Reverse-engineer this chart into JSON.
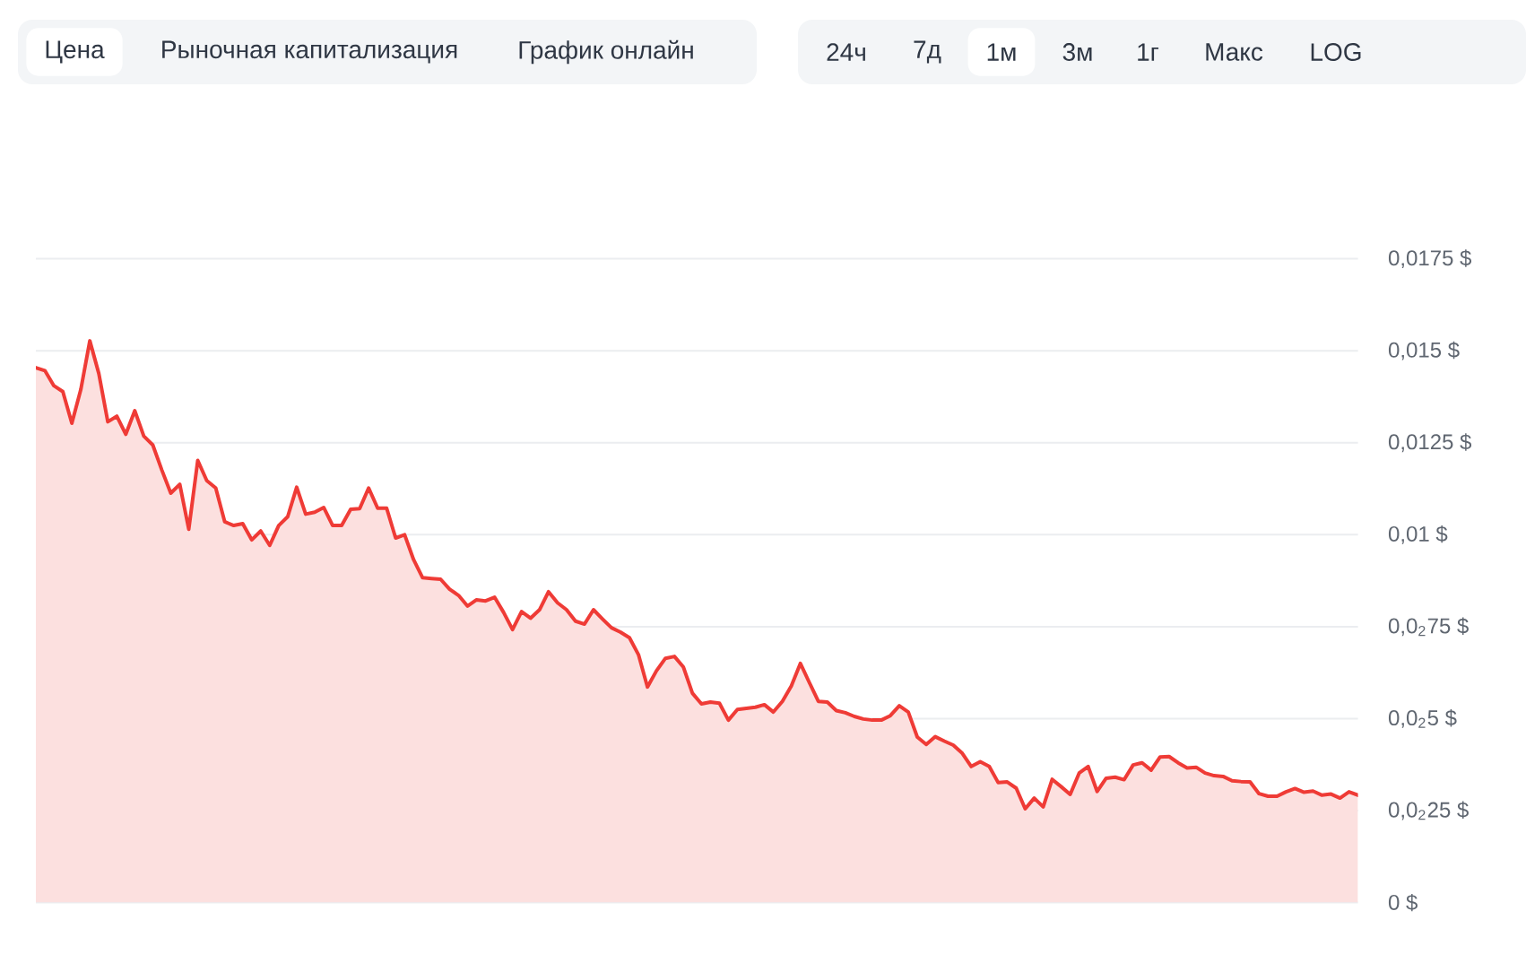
{
  "chart_data": {
    "type": "area",
    "annotations": [
      "Цена",
      "Рыночная капитализация",
      "График онлайн",
      "24ч",
      "7д",
      "1м",
      "3м",
      "1г",
      "Макс",
      "LOG"
    ],
    "categories": [
      null,
      null,
      null,
      null,
      null,
      null,
      null,
      null,
      null,
      null,
      null,
      null,
      null,
      null,
      null,
      null,
      null,
      null,
      null,
      null,
      null,
      null,
      null,
      null,
      null,
      null,
      null,
      null,
      null,
      null,
      null,
      null,
      null,
      null,
      null,
      null,
      null,
      null,
      null,
      null,
      null,
      null,
      null,
      null,
      null,
      null,
      null,
      null,
      null,
      null,
      null,
      null,
      null,
      null,
      null,
      null,
      null,
      null,
      null,
      null,
      null,
      null,
      null,
      null,
      null,
      null,
      null,
      null,
      null,
      null,
      null,
      null,
      null,
      null,
      null,
      null,
      null,
      null,
      null,
      null,
      null,
      null,
      null,
      null,
      null,
      null,
      null,
      null,
      null,
      null,
      null,
      null,
      null,
      null,
      null,
      null,
      null,
      null,
      null,
      null,
      null,
      null,
      null,
      null,
      null,
      null,
      null,
      null,
      null,
      null,
      null,
      null,
      null,
      null,
      null,
      null,
      null,
      null,
      null,
      null,
      null,
      null,
      null,
      null,
      null,
      null,
      null,
      null,
      null,
      null,
      null,
      null,
      null,
      null,
      null,
      null,
      null,
      null,
      null,
      null,
      null,
      null,
      null,
      null,
      null,
      null,
      null,
      null
    ],
    "series": [
      {
        "color": "#ef3b36",
        "values": [
          0.01454,
          0.01446,
          0.01405,
          0.01389,
          0.01303,
          0.01395,
          0.01527,
          0.01438,
          0.01307,
          0.01322,
          0.01273,
          0.01337,
          0.01268,
          0.01244,
          0.01176,
          0.01113,
          0.01137,
          0.01015,
          0.01202,
          0.01147,
          0.01127,
          0.01035,
          0.01025,
          0.0103,
          0.00986,
          0.0101,
          0.00971,
          0.01025,
          0.01049,
          0.01129,
          0.01056,
          0.01061,
          0.01074,
          0.01025,
          0.01025,
          0.01069,
          0.01071,
          0.01127,
          0.01072,
          0.01072,
          0.00991,
          0.01,
          0.00932,
          0.00883,
          0.00881,
          0.00879,
          0.00852,
          0.00835,
          0.00806,
          0.00823,
          0.0082,
          0.0083,
          0.00789,
          0.00742,
          0.00791,
          0.00773,
          0.00796,
          0.00845,
          0.00815,
          0.00796,
          0.00765,
          0.00757,
          0.00796,
          0.00771,
          0.00747,
          0.00735,
          0.0072,
          0.00674,
          0.00586,
          0.0063,
          0.00664,
          0.00669,
          0.0064,
          0.00569,
          0.0054,
          0.00545,
          0.00542,
          0.00496,
          0.00525,
          0.00528,
          0.00531,
          0.00538,
          0.00518,
          0.00547,
          0.00589,
          0.0065,
          0.00598,
          0.00547,
          0.00545,
          0.00522,
          0.00516,
          0.00506,
          0.00499,
          0.00496,
          0.00496,
          0.00508,
          0.00535,
          0.00518,
          0.0045,
          0.0043,
          0.00451,
          0.00439,
          0.00428,
          0.00406,
          0.0037,
          0.00383,
          0.0037,
          0.00326,
          0.00328,
          0.00311,
          0.00255,
          0.00284,
          0.0026,
          0.00335,
          0.00315,
          0.00294,
          0.00352,
          0.0037,
          0.00302,
          0.00338,
          0.00341,
          0.00334,
          0.00374,
          0.0038,
          0.0036,
          0.00396,
          0.00397,
          0.0038,
          0.00366,
          0.00368,
          0.00352,
          0.00345,
          0.00343,
          0.00331,
          0.00329,
          0.00328,
          0.00296,
          0.00289,
          0.00289,
          0.00301,
          0.0031,
          0.003,
          0.00303,
          0.00292,
          0.00295,
          0.00284,
          0.00301,
          0.00292
        ]
      }
    ],
    "ylim": [
      0,
      0.0175
    ],
    "yticks": [
      {
        "value": 0,
        "label": "0 $"
      },
      {
        "value": 0.0025,
        "label": "0,0$_{2}$25 $"
      },
      {
        "value": 0.005,
        "label": "0,0$_{2}$5 $"
      },
      {
        "value": 0.0075,
        "label": "0,0$_{2}$75 $"
      },
      {
        "value": 0.01,
        "label": "0,01 $"
      },
      {
        "value": 0.0125,
        "label": "0,0125 $"
      },
      {
        "value": 0.015,
        "label": "0,015 $"
      },
      {
        "value": 0.0175,
        "label": "0,0175 $"
      }
    ],
    "grid": "y",
    "tick_labels": "y"
  }
}
